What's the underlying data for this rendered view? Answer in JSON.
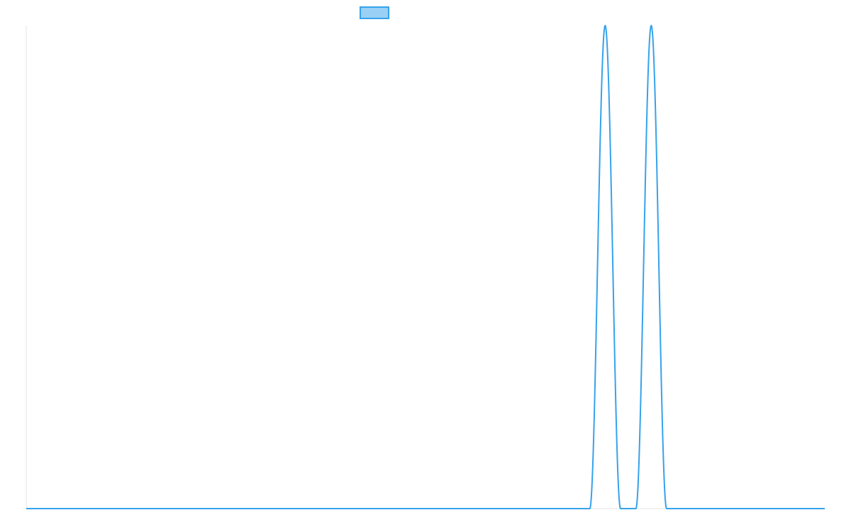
{
  "chart_data": {
    "type": "line",
    "title": "",
    "xlabel": "",
    "ylabel": "",
    "xlim": [
      0,
      52
    ],
    "ylim": [
      0,
      1
    ],
    "grid": false,
    "legend": {
      "placement": "top-center",
      "swatch": true
    },
    "colors": {
      "line": "#36A2EB",
      "swatch_fill": "#9AD0F5",
      "axis": "#e5e5e5"
    },
    "series": [
      {
        "x": [
          0,
          36.7,
          37.7,
          38.7,
          39.7,
          40.7,
          41.7,
          42.7,
          52
        ],
        "y": [
          0,
          0,
          1,
          0,
          0,
          1,
          0,
          0,
          0
        ]
      }
    ]
  }
}
